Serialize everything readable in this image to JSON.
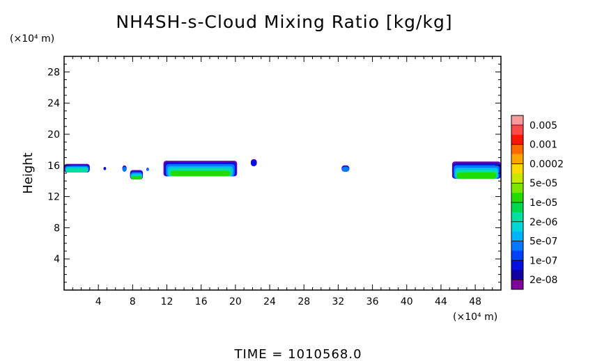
{
  "chart_data": {
    "type": "heatmap",
    "title": "NH4SH-s-Cloud Mixing Ratio [kg/kg]",
    "ylabel": "Height",
    "xunit": "(×10⁴ m)",
    "yunit": "(×10⁴ m)",
    "xlim": [
      0,
      51
    ],
    "ylim": [
      0,
      30
    ],
    "xticks": [
      "4",
      "8",
      "12",
      "16",
      "20",
      "24",
      "28",
      "32",
      "36",
      "40",
      "44",
      "48"
    ],
    "yticks": [
      "4",
      "8",
      "12",
      "16",
      "20",
      "24",
      "28"
    ],
    "colorbar": {
      "labels": [
        "0.005",
        "0.001",
        "0.0002",
        "5e-05",
        "1e-05",
        "2e-06",
        "5e-07",
        "1e-07",
        "2e-08"
      ],
      "colors_top_to_bottom": [
        "#ff9a9a",
        "#ff4a4a",
        "#ff1500",
        "#ff6a00",
        "#ffa500",
        "#ffd900",
        "#c8e800",
        "#7de600",
        "#22dc00",
        "#00d84c",
        "#00e0a0",
        "#00d8d8",
        "#00b4ff",
        "#0078ff",
        "#0040ff",
        "#0010e0",
        "#1000a0",
        "#8000a0"
      ]
    },
    "cloud_regions": [
      {
        "x": [
          0.0,
          3.0
        ],
        "y_top": 16.2,
        "y_base": 15.1,
        "max_level": "1e-05"
      },
      {
        "x": [
          4.6,
          4.9
        ],
        "y_top": 15.8,
        "y_base": 15.4,
        "max_level": "1e-07"
      },
      {
        "x": [
          6.8,
          7.3
        ],
        "y_top": 16.0,
        "y_base": 15.2,
        "max_level": "5e-07"
      },
      {
        "x": [
          7.7,
          9.2
        ],
        "y_top": 15.4,
        "y_base": 14.2,
        "max_level": "5e-05"
      },
      {
        "x": [
          9.6,
          9.9
        ],
        "y_top": 15.7,
        "y_base": 15.3,
        "max_level": "5e-07"
      },
      {
        "x": [
          11.6,
          20.2
        ],
        "y_top": 16.6,
        "y_base": 14.6,
        "max_level": "5e-05"
      },
      {
        "x": [
          21.8,
          22.5
        ],
        "y_top": 16.8,
        "y_base": 15.9,
        "max_level": "1e-07"
      },
      {
        "x": [
          32.4,
          33.3
        ],
        "y_top": 16.0,
        "y_base": 15.2,
        "max_level": "5e-07"
      },
      {
        "x": [
          45.3,
          51.0
        ],
        "y_top": 16.5,
        "y_base": 14.3,
        "max_level": "5e-05"
      }
    ]
  },
  "time_text": "TIME = 1010568.0"
}
